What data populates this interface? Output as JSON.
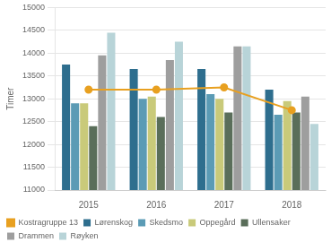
{
  "chart_data": {
    "type": "bar",
    "categories": [
      "2015",
      "2016",
      "2017",
      "2018"
    ],
    "series": [
      {
        "name": "Lørenskog",
        "color": "#2e6e8e",
        "values": [
          13750,
          13650,
          13650,
          13200
        ]
      },
      {
        "name": "Skedsmo",
        "color": "#5b9bb5",
        "values": [
          12900,
          13000,
          13100,
          12650
        ]
      },
      {
        "name": "Oppegård",
        "color": "#c9ca7a",
        "values": [
          12900,
          13050,
          13000,
          12950
        ]
      },
      {
        "name": "Ullensaker",
        "color": "#5a6e5a",
        "values": [
          12400,
          12600,
          12700,
          12700
        ]
      },
      {
        "name": "Drammen",
        "color": "#9e9e9e",
        "values": [
          13950,
          13850,
          14150,
          13050
        ]
      },
      {
        "name": "Røyken",
        "color": "#b8d4d8",
        "values": [
          14450,
          14250,
          14150,
          12450
        ]
      },
      {
        "name": "Kostragruppe 13",
        "color": "#e8a020",
        "type": "line",
        "marker": "circle",
        "values": [
          13200,
          13200,
          13250,
          12750
        ]
      }
    ],
    "ylabel": "Timer",
    "ylim": [
      11000,
      15000
    ],
    "yticks": [
      11000,
      11500,
      12000,
      12500,
      13000,
      13500,
      14000,
      14500,
      15000
    ],
    "grid": true,
    "legend": "bottom"
  }
}
